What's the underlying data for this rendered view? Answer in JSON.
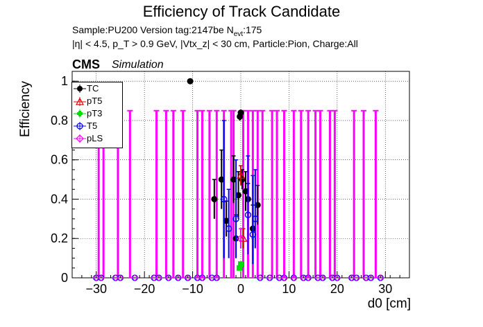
{
  "header": {
    "title": "Efficiency of Track Candidate",
    "sample_line": "Sample:PU200   Version tag:2147be  N",
    "sample_sub": "evt",
    "sample_value": ":175",
    "cuts_line": "|η| < 4.5, p_T > 0.9 GeV, |Vtx_z| < 30 cm, Particle:Pion, Charge:All",
    "cms_label": "CMS",
    "sim_label": "Simulation"
  },
  "chart_data": {
    "type": "scatter",
    "xlabel": "d0 [cm]",
    "ylabel": "Efficiency",
    "xlim": [
      -35,
      35
    ],
    "ylim": [
      0,
      1.05
    ],
    "x_ticks": [
      -30,
      -20,
      -10,
      0,
      10,
      20,
      30
    ],
    "y_ticks": [
      0,
      0.2,
      0.4,
      0.6,
      0.8,
      1
    ],
    "grid": true,
    "legend_position": "top-left",
    "legend": [
      "TC",
      "pT5",
      "pT3",
      "T5",
      "pLS"
    ],
    "colors": {
      "TC": "#000000",
      "pT5": "#e00000",
      "pT3": "#00dd00",
      "T5": "#0000ff",
      "pLS": "#ff00ff"
    },
    "series": [
      {
        "name": "TC",
        "points": [
          {
            "x": -10.5,
            "y": 1.0,
            "lo": 0.0,
            "hi": 0.0
          },
          {
            "x": -5.5,
            "y": 0.4,
            "lo": 0.1,
            "hi": 0.1
          },
          {
            "x": -4.0,
            "y": 0.5,
            "lo": 0.15,
            "hi": 0.15
          },
          {
            "x": -3.0,
            "y": 0.29,
            "lo": 0.08,
            "hi": 0.1
          },
          {
            "x": -1.5,
            "y": 0.5,
            "lo": 0.12,
            "hi": 0.12
          },
          {
            "x": -1.0,
            "y": 0.2,
            "lo": 0.1,
            "hi": 0.12
          },
          {
            "x": -0.5,
            "y": 0.42,
            "lo": 0.12,
            "hi": 0.12
          },
          {
            "x": -0.2,
            "y": 0.82,
            "lo": 0.02,
            "hi": 0.02
          },
          {
            "x": 0.0,
            "y": 0.84,
            "lo": 0.01,
            "hi": 0.01
          },
          {
            "x": 0.3,
            "y": 0.5,
            "lo": 0.05,
            "hi": 0.05
          },
          {
            "x": 1.0,
            "y": 0.44,
            "lo": 0.1,
            "hi": 0.1
          },
          {
            "x": 1.5,
            "y": 0.4,
            "lo": 0.08,
            "hi": 0.08
          },
          {
            "x": 2.5,
            "y": 0.25,
            "lo": 0.1,
            "hi": 0.12
          },
          {
            "x": 3.5,
            "y": 0.37,
            "lo": 0.1,
            "hi": 0.1
          }
        ]
      },
      {
        "name": "pT5",
        "points": [
          {
            "x": 0.0,
            "y": 0.52,
            "lo": 0.05,
            "hi": 0.05
          },
          {
            "x": 0.5,
            "y": 0.2,
            "lo": 0.05,
            "hi": 0.05
          }
        ]
      },
      {
        "name": "pT3",
        "points": [
          {
            "x": 0.0,
            "y": 0.07,
            "lo": 0.01,
            "hi": 0.01
          },
          {
            "x": -0.3,
            "y": 0.05,
            "lo": 0.01,
            "hi": 0.01
          }
        ]
      },
      {
        "name": "T5",
        "points": [
          {
            "x": -3.5,
            "y": 0.4,
            "lo": 0.3,
            "hi": 0.4
          },
          {
            "x": -2.5,
            "y": 0.25,
            "lo": 0.15,
            "hi": 0.2
          },
          {
            "x": -1.0,
            "y": 0.3,
            "lo": 0.2,
            "hi": 0.3
          },
          {
            "x": 1.5,
            "y": 0.32,
            "lo": 0.2,
            "hi": 0.3
          },
          {
            "x": 2.5,
            "y": 0.22,
            "lo": 0.15,
            "hi": 0.3
          },
          {
            "x": 3.0,
            "y": 0.3,
            "lo": 0.15,
            "hi": 0.25
          }
        ]
      },
      {
        "name": "pLS",
        "points": [
          {
            "x": 0.0,
            "y": 0.2,
            "lo": 0.05,
            "hi": 0.05
          }
        ]
      }
    ],
    "pls_band_x": [
      -29.5,
      -28.5,
      -25.5,
      -23.0,
      -17.5,
      -15.5,
      -14.0,
      -12.0,
      -9.0,
      -8.0,
      -6.5,
      -5.0,
      -3.5,
      -2.0,
      -1.5,
      0.5,
      1.5,
      2.5,
      3.5,
      4.5,
      6.5,
      7.5,
      9.0,
      11.0,
      12.5,
      14.0,
      15.5,
      16.5,
      18.5,
      19.5,
      23.5,
      25.5,
      28.0
    ],
    "pls_band_y_top": 0.85,
    "pls_band_y_bottom": 0.0,
    "zero_points_x": [
      -30,
      -29,
      -26,
      -25,
      -22,
      -18,
      -17,
      -15,
      -13,
      -11,
      -9,
      -8,
      -6,
      -5,
      4,
      6,
      8,
      9,
      11,
      13,
      14,
      16,
      17,
      19,
      20,
      23,
      24,
      26,
      27,
      29
    ]
  }
}
